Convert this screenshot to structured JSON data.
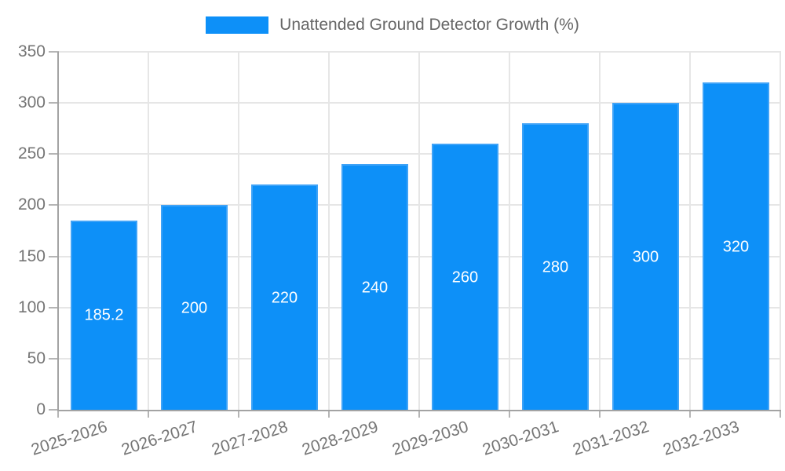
{
  "chart_data": {
    "type": "bar",
    "title": "",
    "xlabel": "",
    "ylabel": "",
    "legend": [
      {
        "label": "Unattended Ground Detector Growth (%)"
      }
    ],
    "legend_position": "top",
    "categories": [
      "2025-2026",
      "2026-2027",
      "2027-2028",
      "2028-2029",
      "2029-2030",
      "2030-2031",
      "2031-2032",
      "2032-2033"
    ],
    "series": [
      {
        "name": "Unattended Ground Detector Growth (%)",
        "values": [
          185.2,
          200,
          220,
          240,
          260,
          280,
          300,
          320
        ],
        "value_labels": [
          "185.2",
          "200",
          "220",
          "240",
          "260",
          "280",
          "300",
          "320"
        ]
      }
    ],
    "ylim": [
      0,
      350
    ],
    "yticks": [
      0,
      50,
      100,
      150,
      200,
      250,
      300,
      350
    ],
    "grid": true,
    "colors": {
      "bar_fill": "#0d90f8",
      "bar_border": "#3fa3f7",
      "value_label": "#ffffff",
      "grid_line": "#e6e6e6",
      "axis_line": "#a3a3a3",
      "tick_mark": "#b5b5b5",
      "tick_label": "#757575",
      "legend_text": "#666666"
    }
  }
}
